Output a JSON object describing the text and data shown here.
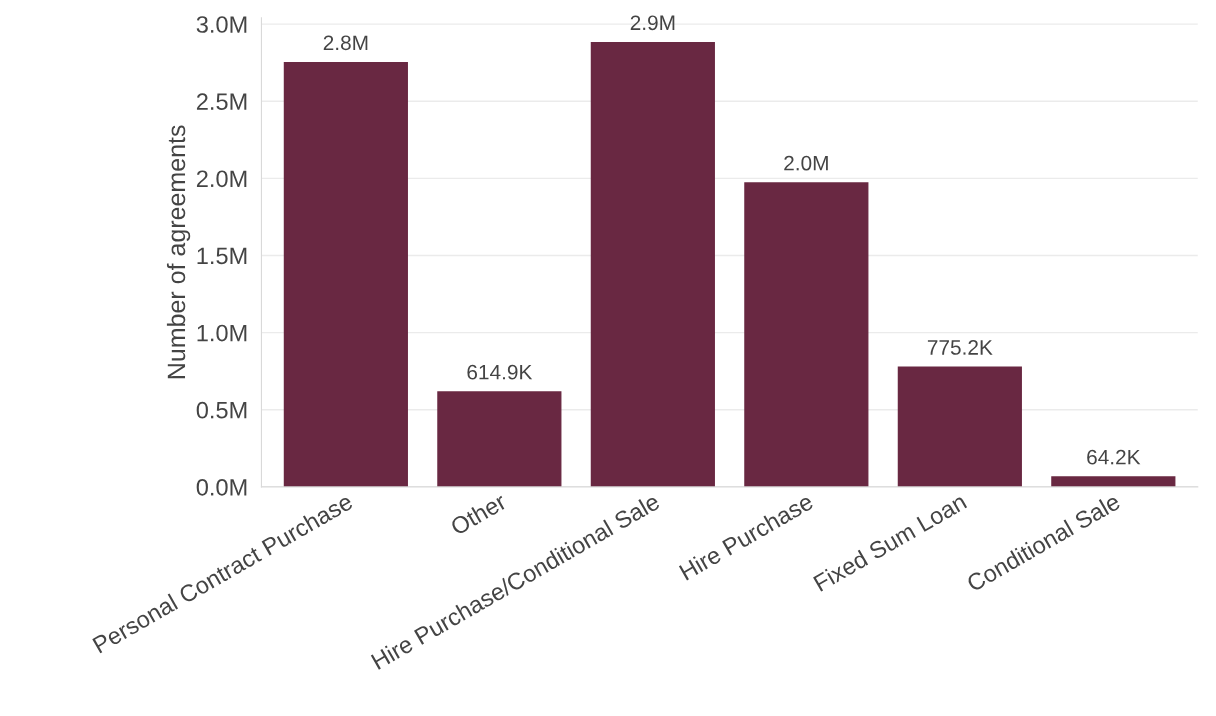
{
  "chart_data": {
    "type": "bar",
    "ylabel": "Number of agreements",
    "categories": [
      "Personal Contract Purchase",
      "Other",
      "Hire Purchase/Conditional Sale",
      "Hire Purchase",
      "Fixed Sum Loan",
      "Conditional Sale"
    ],
    "values": [
      2750000,
      614900,
      2880000,
      1970000,
      775200,
      64200
    ],
    "value_labels": [
      "2.8M",
      "614.9K",
      "2.9M",
      "2.0M",
      "775.2K",
      "64.2K"
    ],
    "color": "#692842",
    "ylim": [
      0,
      3040000
    ],
    "yticks": [
      {
        "value": 0,
        "label": "0.0M"
      },
      {
        "value": 500000,
        "label": "0.5M"
      },
      {
        "value": 1000000,
        "label": "1.0M"
      },
      {
        "value": 1500000,
        "label": "1.5M"
      },
      {
        "value": 2000000,
        "label": "2.0M"
      },
      {
        "value": 2500000,
        "label": "2.5M"
      },
      {
        "value": 3000000,
        "label": "3.0M"
      }
    ],
    "grid": "y",
    "legend": false
  }
}
